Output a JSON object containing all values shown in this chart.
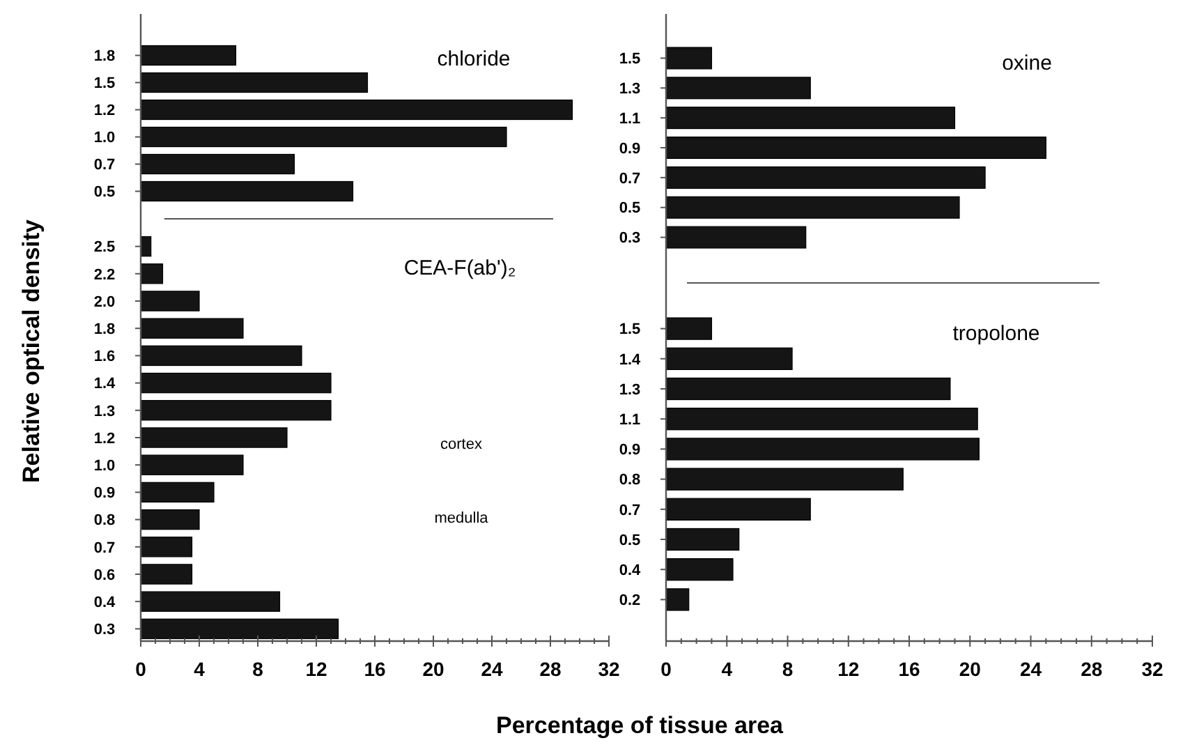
{
  "chart_data": [
    {
      "type": "bar",
      "orientation": "horizontal",
      "title": "chloride",
      "ylabel": "Relative optical density",
      "categories": [
        "1.8",
        "1.5",
        "1.2",
        "1.0",
        "0.7",
        "0.5"
      ],
      "values": [
        6.5,
        15.5,
        29.5,
        25,
        10.5,
        14.5
      ],
      "color": "#151515",
      "xlim": [
        0,
        32
      ],
      "tick_labels": "y"
    },
    {
      "type": "bar",
      "orientation": "horizontal",
      "title": "CEA-F(ab')₂",
      "xlabel": "Percentage of tissue area",
      "annotations": [
        "cortex",
        "medulla"
      ],
      "categories": [
        "2.5",
        "2.2",
        "2.0",
        "1.8",
        "1.6",
        "1.4",
        "1.3",
        "1.2",
        "1.0",
        "0.9",
        "0.8",
        "0.7",
        "0.6",
        "0.4",
        "0.3"
      ],
      "values": [
        0.7,
        1.5,
        4,
        7,
        11,
        13,
        13,
        10,
        7,
        5,
        4,
        3.5,
        3.5,
        9.5,
        13.5
      ],
      "color": "#151515",
      "xlim": [
        0,
        32
      ],
      "xticks": [
        0,
        {
          "value": 1,
          "label": null
        },
        {
          "value": 2,
          "label": null
        },
        {
          "value": 3,
          "label": null
        },
        4,
        {
          "value": 5,
          "label": null
        },
        {
          "value": 6,
          "label": null
        },
        {
          "value": 7,
          "label": null
        },
        8,
        {
          "value": 9,
          "label": null
        },
        {
          "value": 10,
          "label": null
        },
        {
          "value": 11,
          "label": null
        },
        12,
        {
          "value": 13,
          "label": null
        },
        {
          "value": 14,
          "label": null
        },
        {
          "value": 15,
          "label": null
        },
        16,
        {
          "value": 17,
          "label": null
        },
        {
          "value": 18,
          "label": null
        },
        {
          "value": 19,
          "label": null
        },
        20,
        {
          "value": 21,
          "label": null
        },
        {
          "value": 22,
          "label": null
        },
        {
          "value": 23,
          "label": null
        },
        24,
        {
          "value": 25,
          "label": null
        },
        {
          "value": 26,
          "label": null
        },
        {
          "value": 27,
          "label": null
        },
        28,
        {
          "value": 29,
          "label": null
        },
        {
          "value": 30,
          "label": null
        },
        {
          "value": 31,
          "label": null
        },
        32
      ]
    },
    {
      "type": "bar",
      "orientation": "horizontal",
      "title": "oxine",
      "categories": [
        "1.5",
        "1.3",
        "1.1",
        "0.9",
        "0.7",
        "0.5",
        "0.3"
      ],
      "values": [
        3,
        9.5,
        19,
        25,
        21,
        19.3,
        9.2
      ],
      "color": "#151515",
      "xlim": [
        0,
        32
      ],
      "tick_labels": "y"
    },
    {
      "type": "bar",
      "orientation": "horizontal",
      "title": "tropolone",
      "categories": [
        "1.5",
        "1.4",
        "1.3",
        "1.1",
        "0.9",
        "0.8",
        "0.7",
        "0.5",
        "0.4",
        "0.2"
      ],
      "values": [
        3,
        8.3,
        18.7,
        20.5,
        20.6,
        15.6,
        9.5,
        4.8,
        4.4,
        1.5
      ],
      "color": "#151515",
      "xlim": [
        0,
        32
      ],
      "xticks": [
        0,
        {
          "value": 1,
          "label": null
        },
        {
          "value": 2,
          "label": null
        },
        {
          "value": 3,
          "label": null
        },
        4,
        {
          "value": 5,
          "label": null
        },
        {
          "value": 6,
          "label": null
        },
        {
          "value": 7,
          "label": null
        },
        8,
        {
          "value": 9,
          "label": null
        },
        {
          "value": 10,
          "label": null
        },
        {
          "value": 11,
          "label": null
        },
        12,
        {
          "value": 13,
          "label": null
        },
        {
          "value": 14,
          "label": null
        },
        {
          "value": 15,
          "label": null
        },
        16,
        {
          "value": 17,
          "label": null
        },
        {
          "value": 18,
          "label": null
        },
        {
          "value": 19,
          "label": null
        },
        20,
        {
          "value": 21,
          "label": null
        },
        {
          "value": 22,
          "label": null
        },
        {
          "value": 23,
          "label": null
        },
        24,
        {
          "value": 25,
          "label": null
        },
        {
          "value": 26,
          "label": null
        },
        {
          "value": 27,
          "label": null
        },
        28,
        {
          "value": 29,
          "label": null
        },
        {
          "value": 30,
          "label": null
        },
        {
          "value": 31,
          "label": null
        },
        32
      ]
    }
  ]
}
